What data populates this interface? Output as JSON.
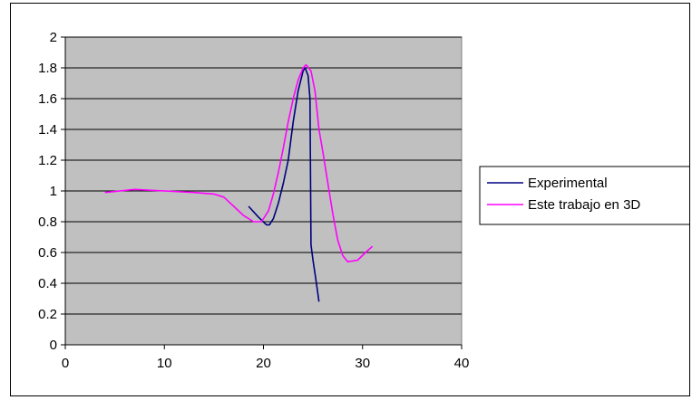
{
  "chart_data": {
    "type": "line",
    "title": "",
    "xlabel": "",
    "ylabel": "",
    "xlim": [
      0,
      40
    ],
    "ylim": [
      0,
      2
    ],
    "x_ticks": [
      "0",
      "10",
      "20",
      "30",
      "40"
    ],
    "y_ticks": [
      "0",
      "0.2",
      "0.4",
      "0.6",
      "0.8",
      "1",
      "1.2",
      "1.4",
      "1.6",
      "1.8",
      "2"
    ],
    "grid": "horizontal",
    "plot_background": "#c0c0c0",
    "legend_position": "right",
    "series": [
      {
        "name": "Experimental",
        "color": "#000080",
        "points": [
          [
            18.5,
            0.9
          ],
          [
            19.5,
            0.83
          ],
          [
            20.3,
            0.78
          ],
          [
            20.6,
            0.78
          ],
          [
            21.0,
            0.82
          ],
          [
            21.5,
            0.92
          ],
          [
            22.0,
            1.05
          ],
          [
            22.5,
            1.2
          ],
          [
            23.0,
            1.45
          ],
          [
            23.5,
            1.65
          ],
          [
            24.0,
            1.78
          ],
          [
            24.2,
            1.8
          ],
          [
            24.5,
            1.75
          ],
          [
            24.7,
            1.6
          ],
          [
            24.8,
            0.65
          ],
          [
            25.0,
            0.55
          ],
          [
            25.3,
            0.42
          ],
          [
            25.6,
            0.28
          ]
        ]
      },
      {
        "name": "Este trabajo en 3D",
        "color": "#ff00ff",
        "points": [
          [
            4.0,
            0.99
          ],
          [
            5.5,
            1.0
          ],
          [
            7.0,
            1.01
          ],
          [
            10.0,
            1.0
          ],
          [
            13.0,
            0.99
          ],
          [
            15.0,
            0.98
          ],
          [
            16.0,
            0.96
          ],
          [
            17.0,
            0.9
          ],
          [
            18.0,
            0.84
          ],
          [
            19.0,
            0.8
          ],
          [
            19.8,
            0.8
          ],
          [
            20.5,
            0.87
          ],
          [
            21.0,
            0.98
          ],
          [
            21.5,
            1.12
          ],
          [
            22.0,
            1.28
          ],
          [
            22.5,
            1.45
          ],
          [
            23.0,
            1.6
          ],
          [
            23.5,
            1.72
          ],
          [
            24.0,
            1.8
          ],
          [
            24.3,
            1.82
          ],
          [
            24.8,
            1.78
          ],
          [
            25.2,
            1.65
          ],
          [
            25.6,
            1.4
          ],
          [
            26.0,
            1.25
          ],
          [
            26.5,
            1.05
          ],
          [
            27.0,
            0.85
          ],
          [
            27.5,
            0.68
          ],
          [
            28.0,
            0.58
          ],
          [
            28.5,
            0.54
          ],
          [
            29.5,
            0.55
          ],
          [
            30.3,
            0.6
          ],
          [
            31.0,
            0.64
          ]
        ]
      }
    ]
  }
}
